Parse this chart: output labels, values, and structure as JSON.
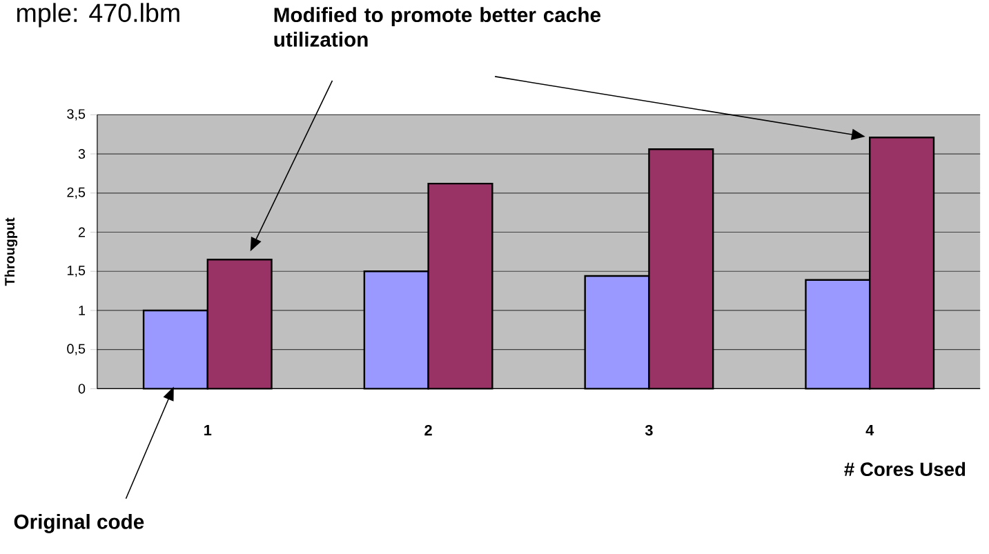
{
  "chart_data": {
    "type": "bar",
    "title": "mple: 470.lbm",
    "xlabel": "# Cores Used",
    "ylabel": "Througput",
    "categories": [
      "1",
      "2",
      "3",
      "4"
    ],
    "series": [
      {
        "color": "#9999ff",
        "values": [
          1.0,
          1.5,
          1.44,
          1.39
        ]
      },
      {
        "color": "#993366",
        "values": [
          1.65,
          2.62,
          3.06,
          3.21
        ]
      }
    ],
    "ylim": [
      0,
      3.5
    ],
    "yticks": [
      0,
      {
        "value": 0.5,
        "label": "0,5"
      },
      1,
      {
        "value": 1.5,
        "label": "1,5"
      },
      2,
      {
        "value": 2.5,
        "label": "2,5"
      },
      3,
      {
        "value": 3.5,
        "label": "3,5"
      }
    ],
    "grid": "y",
    "annotations": [
      "Modified to promote better cache utilization",
      "Original code"
    ]
  }
}
